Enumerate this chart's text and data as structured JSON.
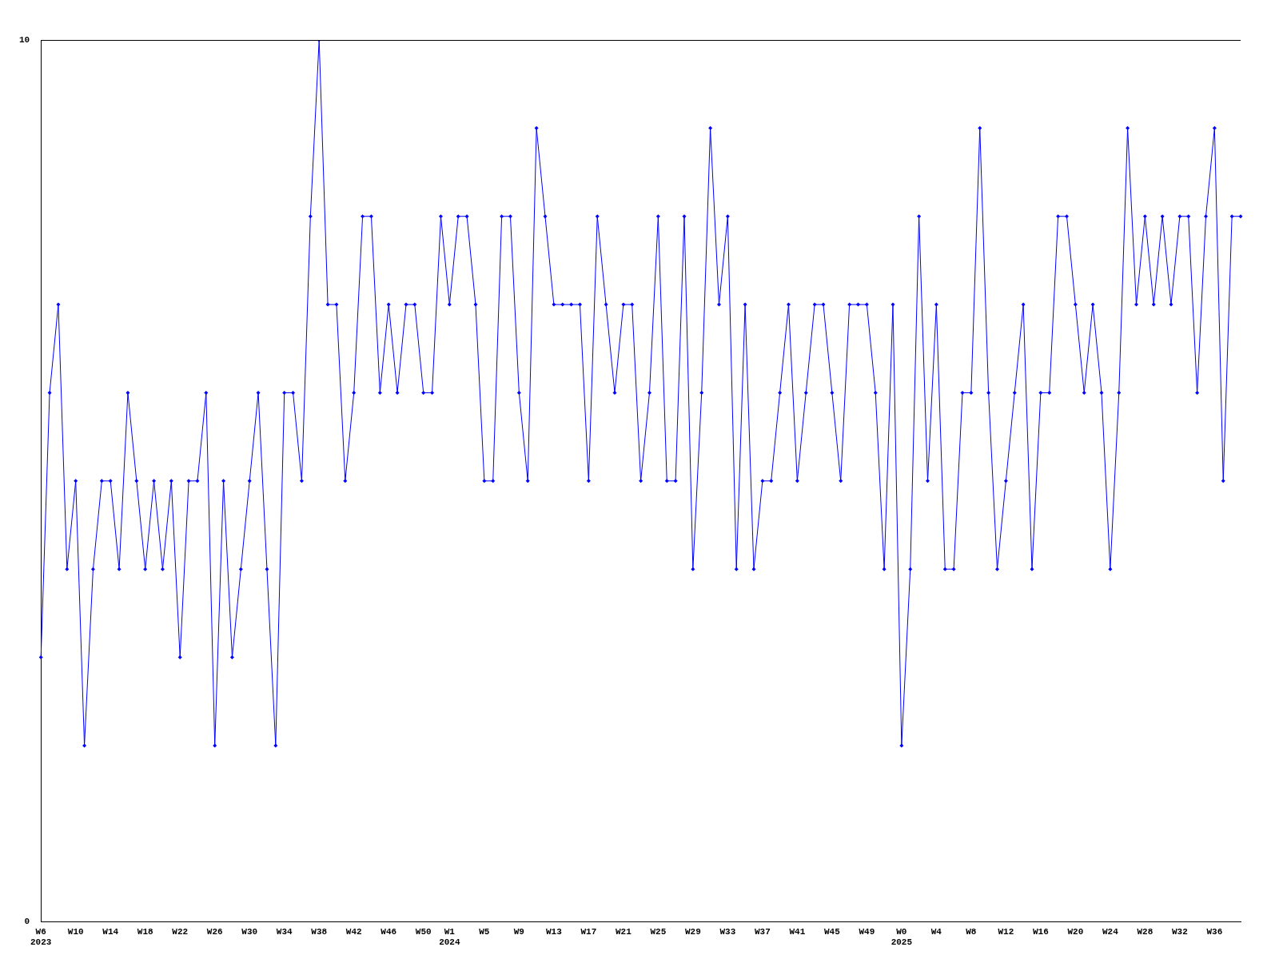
{
  "chart_data": {
    "type": "line",
    "categories": [
      "W6\n2023",
      null,
      null,
      null,
      "W10",
      null,
      null,
      null,
      "W14",
      null,
      null,
      null,
      "W18",
      null,
      null,
      null,
      "W22",
      null,
      null,
      null,
      "W26",
      null,
      null,
      null,
      "W30",
      null,
      null,
      null,
      "W34",
      null,
      null,
      null,
      "W38",
      null,
      null,
      null,
      "W42",
      null,
      null,
      null,
      "W46",
      null,
      null,
      null,
      "W50",
      null,
      null,
      "W1\n2024",
      null,
      null,
      null,
      "W5",
      null,
      null,
      null,
      "W9",
      null,
      null,
      null,
      "W13",
      null,
      null,
      null,
      "W17",
      null,
      null,
      null,
      "W21",
      null,
      null,
      null,
      "W25",
      null,
      null,
      null,
      "W29",
      null,
      null,
      null,
      "W33",
      null,
      null,
      null,
      "W37",
      null,
      null,
      null,
      "W41",
      null,
      null,
      null,
      "W45",
      null,
      null,
      null,
      "W49",
      null,
      null,
      null,
      "W0\n2025",
      null,
      null,
      null,
      "W4",
      null,
      null,
      null,
      "W8",
      null,
      null,
      null,
      "W12",
      null,
      null,
      null,
      "W16",
      null,
      null,
      null,
      "W20",
      null,
      null,
      null,
      "W24",
      null,
      null,
      null,
      "W28",
      null,
      null,
      null,
      "W32",
      null,
      null,
      null,
      "W36",
      null,
      null,
      null
    ],
    "series": [
      {
        "color": "#0000ff",
        "values": [
          3,
          6,
          7,
          4,
          5,
          2,
          4,
          5,
          5,
          4,
          6,
          5,
          4,
          5,
          4,
          5,
          3,
          5,
          5,
          6,
          2,
          5,
          3,
          4,
          5,
          6,
          4,
          2,
          6,
          6,
          5,
          8,
          10,
          7,
          7,
          5,
          6,
          8,
          8,
          6,
          7,
          6,
          7,
          7,
          6,
          6,
          8,
          7,
          8,
          8,
          7,
          5,
          5,
          8,
          8,
          6,
          5,
          9,
          8,
          7,
          7,
          7,
          7,
          5,
          8,
          7,
          6,
          7,
          7,
          5,
          6,
          8,
          5,
          5,
          8,
          4,
          6,
          9,
          7,
          8,
          4,
          7,
          4,
          5,
          5,
          6,
          7,
          5,
          6,
          7,
          7,
          6,
          5,
          7,
          7,
          7,
          6,
          4,
          7,
          2,
          4,
          8,
          5,
          7,
          4,
          4,
          6,
          6,
          9,
          6,
          4,
          5,
          6,
          7,
          4,
          6,
          6,
          8,
          8,
          7,
          6,
          7,
          6,
          4,
          6,
          9,
          7,
          8,
          7,
          8,
          7,
          8,
          8,
          6,
          8,
          9,
          5,
          8,
          8
        ]
      }
    ],
    "ylim": [
      0,
      10
    ],
    "yticks": [
      0,
      10
    ],
    "grid": false,
    "legend": false,
    "marker": "diamond",
    "line_style": "solid"
  }
}
